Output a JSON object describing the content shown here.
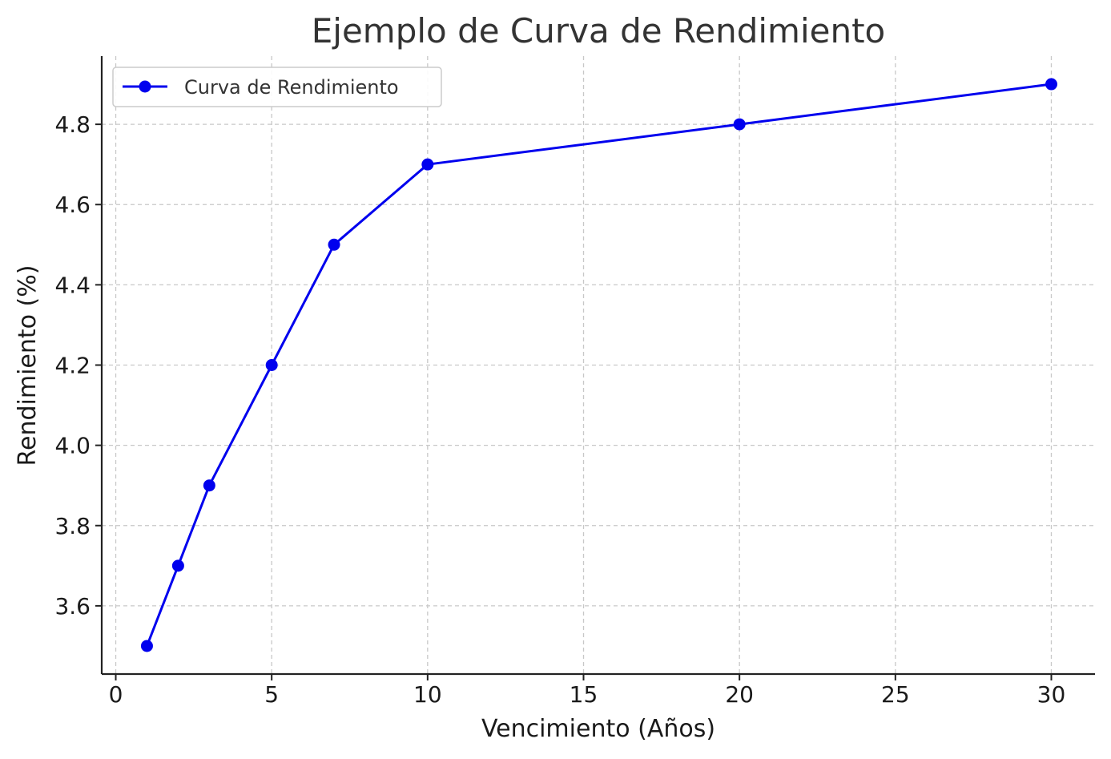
{
  "chart_data": {
    "type": "line",
    "title": "Ejemplo de Curva de Rendimiento",
    "xlabel": "Vencimiento (Años)",
    "ylabel": "Rendimiento (%)",
    "xlim": [
      -0.45,
      31.4
    ],
    "ylim": [
      3.43,
      4.97
    ],
    "xticks": [
      0,
      5,
      10,
      15,
      20,
      25,
      30
    ],
    "xtick_labels": [
      "0",
      "5",
      "10",
      "15",
      "20",
      "25",
      "30"
    ],
    "yticks": [
      3.6,
      3.8,
      4.0,
      4.2,
      4.4,
      4.6,
      4.8
    ],
    "ytick_labels": [
      "3.6",
      "3.8",
      "4.0",
      "4.2",
      "4.4",
      "4.6",
      "4.8"
    ],
    "grid": true,
    "legend_position": "upper-left",
    "series": [
      {
        "name": "Curva de Rendimiento",
        "color": "#0000ee",
        "marker": "circle",
        "x": [
          1,
          2,
          3,
          5,
          7,
          10,
          20,
          30
        ],
        "y": [
          3.5,
          3.7,
          3.9,
          4.2,
          4.5,
          4.7,
          4.8,
          4.9
        ]
      }
    ]
  }
}
